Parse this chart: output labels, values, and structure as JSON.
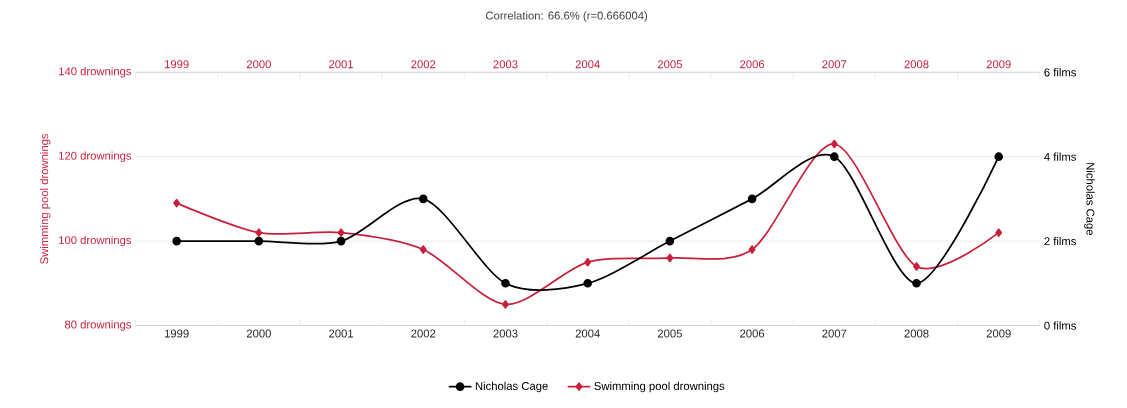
{
  "chart_data": {
    "type": "line",
    "title": "Correlation: 66.6% (r=0.666004)",
    "categories": [
      "1999",
      "2000",
      "2001",
      "2002",
      "2003",
      "2004",
      "2005",
      "2006",
      "2007",
      "2008",
      "2009"
    ],
    "series": [
      {
        "name": "Nicholas Cage",
        "color": "#000000",
        "axis": "y2",
        "marker": "circle",
        "values": [
          2,
          2,
          2,
          3,
          1,
          1,
          2,
          3,
          4,
          1,
          4
        ]
      },
      {
        "name": "Swimming pool drownings",
        "color": "#c8203c",
        "marker": "diamond",
        "values": [
          109,
          102,
          102,
          98,
          85,
          95,
          96,
          98,
          123,
          94,
          102
        ]
      }
    ],
    "ylabel": "Swimming pool drownings",
    "y2label": "Nicholas Cage",
    "ylim": [
      80,
      140
    ],
    "yticks": [
      {
        "value": 80,
        "label": "80 drownings"
      },
      {
        "value": 100,
        "label": "100 drownings"
      },
      {
        "value": 120,
        "label": "120 drownings"
      },
      {
        "value": 140,
        "label": "140 drownings"
      }
    ],
    "y2lim": [
      0,
      6
    ],
    "y2ticks": [
      {
        "value": 0,
        "label": "0 films"
      },
      {
        "value": 2,
        "label": "2 films"
      },
      {
        "value": 4,
        "label": "4 films"
      },
      {
        "value": 6,
        "label": "6 films"
      }
    ],
    "grid": "y",
    "legend": "bottom",
    "line_style": "solid"
  }
}
